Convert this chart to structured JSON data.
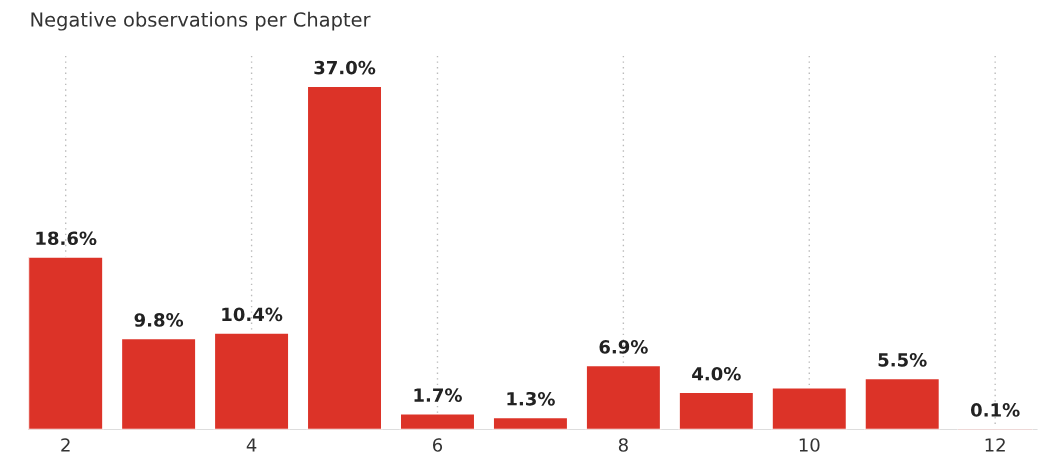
{
  "chart_data": {
    "type": "bar",
    "title": "Negative observations per Chapter",
    "x": [
      2,
      3,
      4,
      5,
      6,
      7,
      8,
      9,
      10,
      11,
      12
    ],
    "values": [
      18.6,
      9.8,
      10.4,
      37.0,
      1.7,
      1.3,
      6.9,
      4.0,
      4.5,
      5.5,
      0.1
    ],
    "value_labels": [
      "18.6%",
      "9.8%",
      "10.4%",
      "37.0%",
      "1.7%",
      "1.3%",
      "6.9%",
      "4.0%",
      null,
      "5.5%",
      "0.1%"
    ],
    "color": "#dc3328",
    "xlim": [
      1.6,
      12.45
    ],
    "xticks": [
      2,
      4,
      6,
      8,
      10,
      12
    ],
    "grid": "x",
    "legend": false
  }
}
